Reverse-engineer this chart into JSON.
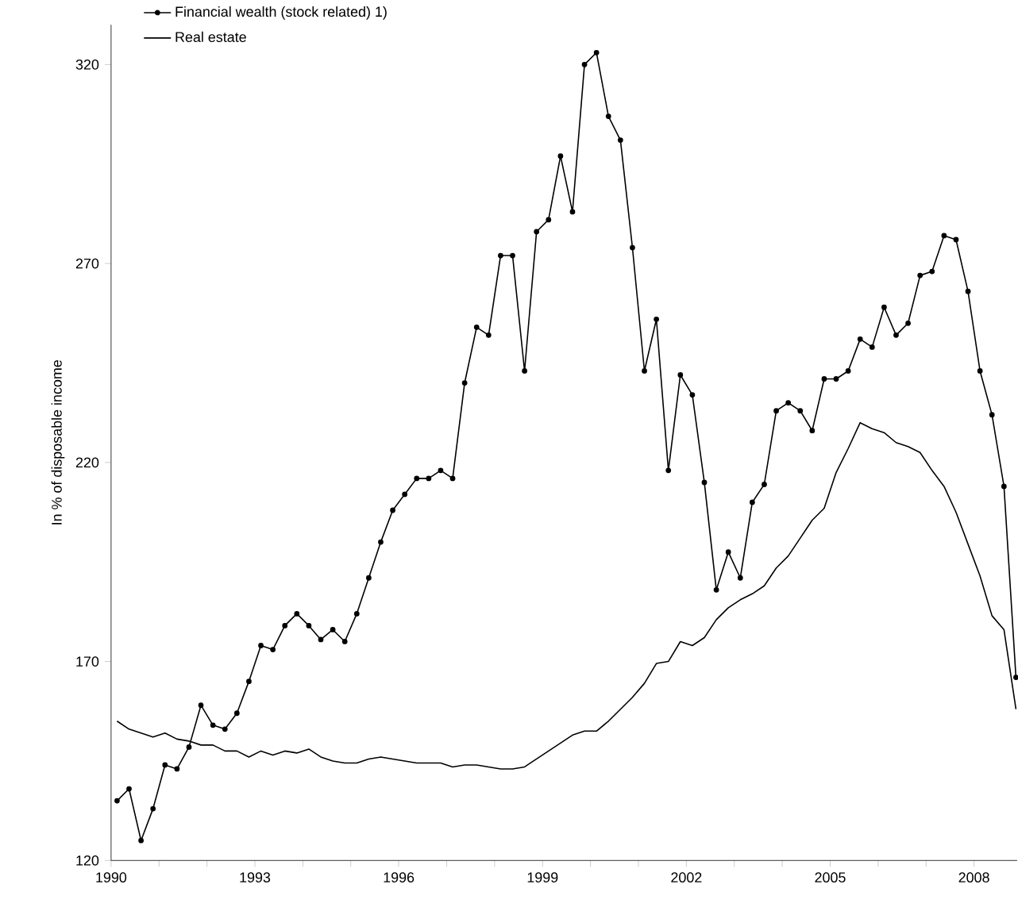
{
  "chart_data": {
    "type": "line",
    "ylabel": "In % of disposable income",
    "x": [
      1990.125,
      1990.375,
      1990.625,
      1990.875,
      1991.125,
      1991.375,
      1991.625,
      1991.875,
      1992.125,
      1992.375,
      1992.625,
      1992.875,
      1993.125,
      1993.375,
      1993.625,
      1993.875,
      1994.125,
      1994.375,
      1994.625,
      1994.875,
      1995.125,
      1995.375,
      1995.625,
      1995.875,
      1996.125,
      1996.375,
      1996.625,
      1996.875,
      1997.125,
      1997.375,
      1997.625,
      1997.875,
      1998.125,
      1998.375,
      1998.625,
      1998.875,
      1999.125,
      1999.375,
      1999.625,
      1999.875,
      2000.125,
      2000.375,
      2000.625,
      2000.875,
      2001.125,
      2001.375,
      2001.625,
      2001.875,
      2002.125,
      2002.375,
      2002.625,
      2002.875,
      2003.125,
      2003.375,
      2003.625,
      2003.875,
      2004.125,
      2004.375,
      2004.625,
      2004.875,
      2005.125,
      2005.375,
      2005.625,
      2005.875,
      2006.125,
      2006.375,
      2006.625,
      2006.875,
      2007.125,
      2007.375,
      2007.625,
      2007.875,
      2008.125,
      2008.375,
      2008.625,
      2008.875
    ],
    "series": [
      {
        "name": "Financial wealth (stock related) 1)",
        "color": "#000000",
        "marker": "circle",
        "values": [
          135,
          138,
          125,
          133,
          144,
          143,
          148.5,
          159,
          154,
          153,
          157,
          165,
          174,
          173,
          179,
          182,
          179,
          175.5,
          178,
          175,
          182,
          191,
          200,
          208,
          212,
          216,
          216,
          218,
          216,
          240,
          254,
          252,
          272,
          272,
          243,
          278,
          281,
          297,
          283,
          320,
          323,
          307,
          301,
          274,
          243,
          256,
          218,
          242,
          237,
          215,
          188,
          197.5,
          191,
          210,
          214.5,
          233,
          235,
          233,
          228,
          241,
          241,
          243,
          251,
          249,
          259,
          252,
          255,
          267,
          268,
          277,
          276,
          263,
          243,
          232,
          214,
          166
        ]
      },
      {
        "name": "Real estate",
        "color": "#000000",
        "marker": "none",
        "values": [
          155,
          153,
          152,
          151,
          152,
          150.5,
          150,
          149,
          149,
          147.5,
          147.5,
          146,
          147.5,
          146.5,
          147.5,
          147,
          148,
          146,
          145,
          144.5,
          144.5,
          145.5,
          146,
          145.5,
          145,
          144.5,
          144.5,
          144.5,
          143.5,
          144,
          144,
          143.5,
          143,
          143,
          143.5,
          145.5,
          147.5,
          149.5,
          151.5,
          152.5,
          152.5,
          155,
          158,
          161,
          164.5,
          169.5,
          170,
          175,
          174,
          176,
          180.5,
          183.5,
          185.5,
          187,
          189,
          193.5,
          196.5,
          201,
          205.5,
          208.5,
          217.5,
          223.5,
          230,
          228.5,
          227.5,
          225,
          224,
          222.5,
          218,
          214,
          207.5,
          199.5,
          191.5,
          181.5,
          178,
          158
        ]
      }
    ],
    "xlim": [
      1990,
      2008.9
    ],
    "xticks": [
      1990,
      {
        "value": 1991,
        "label": null
      },
      {
        "value": 1992,
        "label": null
      },
      1993,
      {
        "value": 1994,
        "label": null
      },
      {
        "value": 1995,
        "label": null
      },
      1996,
      {
        "value": 1997,
        "label": null
      },
      {
        "value": 1998,
        "label": null
      },
      1999,
      {
        "value": 2000,
        "label": null
      },
      {
        "value": 2001,
        "label": null
      },
      2002,
      {
        "value": 2003,
        "label": null
      },
      {
        "value": 2004,
        "label": null
      },
      2005,
      {
        "value": 2006,
        "label": null
      },
      {
        "value": 2007,
        "label": null
      },
      2008
    ],
    "ylim": [
      120,
      330
    ],
    "yticks": [
      120,
      170,
      220,
      270,
      320
    ],
    "grid": false,
    "legend": "top left"
  }
}
